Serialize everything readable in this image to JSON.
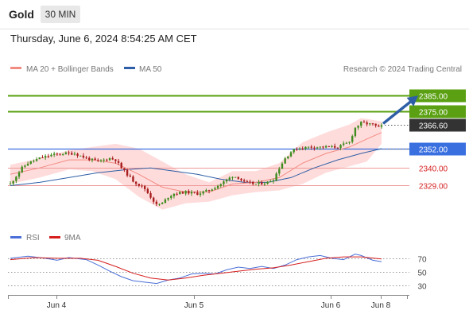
{
  "header": {
    "title": "Gold",
    "timeframe": "30 MIN",
    "datetime": "Thursday, June 6, 2024 8:54:25 AM CET"
  },
  "legend": {
    "ma20": "MA 20 + Bollinger Bands",
    "ma50": "MA 50",
    "rsi": "RSI",
    "rsi9": "9MA",
    "credit": "Research © 2024 Trading Central"
  },
  "colors": {
    "resistance": "#5aa012",
    "pivot": "#3a6fe0",
    "support": "#ee9999",
    "current": "#333333",
    "ma20": "#f28b82",
    "ma50": "#2e5fa6",
    "band": "#ffd6d6",
    "candle_up": "#3e8b1e",
    "candle_down": "#a81e1e",
    "rsi": "#4a6fd8",
    "rsi_ma": "#d61e1e",
    "arrow": "#2e5fa6"
  },
  "chart_data": {
    "type": "candlestick",
    "instrument": "Gold",
    "timeframe": "30 MIN",
    "x_ticks": [
      "Jun 4",
      "Jun 5",
      "Jun 6",
      "Jun 8"
    ],
    "ylim": [
      2305,
      2395
    ],
    "levels": [
      {
        "value": 2385.0,
        "label": "2385.00",
        "kind": "resistance"
      },
      {
        "value": 2375.0,
        "label": "2375.00",
        "kind": "resistance"
      },
      {
        "value": 2366.6,
        "label": "2366.60",
        "kind": "current"
      },
      {
        "value": 2352.0,
        "label": "2352.00",
        "kind": "pivot"
      },
      {
        "value": 2340.0,
        "label": "2340.00",
        "kind": "support"
      },
      {
        "value": 2329.0,
        "label": "2329.00",
        "kind": "support"
      }
    ],
    "price_path": [
      [
        0,
        2330
      ],
      [
        4,
        2340
      ],
      [
        6,
        2343
      ],
      [
        10,
        2346
      ],
      [
        14,
        2348
      ],
      [
        18,
        2349
      ],
      [
        22,
        2349
      ],
      [
        26,
        2346
      ],
      [
        30,
        2344
      ],
      [
        34,
        2346
      ],
      [
        36,
        2345
      ],
      [
        38,
        2340
      ],
      [
        42,
        2332
      ],
      [
        46,
        2327
      ],
      [
        48,
        2322
      ],
      [
        50,
        2317
      ],
      [
        52,
        2318
      ],
      [
        54,
        2322
      ],
      [
        56,
        2324
      ],
      [
        60,
        2325
      ],
      [
        64,
        2324
      ],
      [
        68,
        2326
      ],
      [
        72,
        2330
      ],
      [
        76,
        2335
      ],
      [
        78,
        2334
      ],
      [
        80,
        2331
      ],
      [
        84,
        2330
      ],
      [
        88,
        2331
      ],
      [
        90,
        2333
      ],
      [
        92,
        2340
      ],
      [
        94,
        2346
      ],
      [
        96,
        2350
      ],
      [
        98,
        2352
      ],
      [
        102,
        2353
      ],
      [
        106,
        2353
      ],
      [
        112,
        2353
      ],
      [
        116,
        2356
      ],
      [
        118,
        2365
      ],
      [
        120,
        2368
      ],
      [
        124,
        2367
      ],
      [
        126,
        2365
      ],
      [
        127,
        2366.6
      ]
    ],
    "ma20": [
      [
        0,
        2336
      ],
      [
        10,
        2340
      ],
      [
        20,
        2345
      ],
      [
        28,
        2345
      ],
      [
        36,
        2343
      ],
      [
        44,
        2336
      ],
      [
        52,
        2328
      ],
      [
        60,
        2325
      ],
      [
        68,
        2325
      ],
      [
        76,
        2330
      ],
      [
        84,
        2331
      ],
      [
        92,
        2334
      ],
      [
        100,
        2343
      ],
      [
        108,
        2349
      ],
      [
        116,
        2353
      ],
      [
        122,
        2358
      ],
      [
        127,
        2362
      ]
    ],
    "ma50": [
      [
        0,
        2329
      ],
      [
        10,
        2331
      ],
      [
        20,
        2334
      ],
      [
        30,
        2337
      ],
      [
        40,
        2339
      ],
      [
        48,
        2340
      ],
      [
        56,
        2338
      ],
      [
        64,
        2336
      ],
      [
        72,
        2333
      ],
      [
        80,
        2331
      ],
      [
        88,
        2331
      ],
      [
        96,
        2334
      ],
      [
        104,
        2340
      ],
      [
        112,
        2345
      ],
      [
        120,
        2349
      ],
      [
        127,
        2352
      ]
    ],
    "bb_upper": [
      [
        0,
        2342
      ],
      [
        10,
        2346
      ],
      [
        20,
        2351
      ],
      [
        28,
        2353
      ],
      [
        36,
        2355
      ],
      [
        44,
        2352
      ],
      [
        52,
        2344
      ],
      [
        60,
        2336
      ],
      [
        68,
        2331
      ],
      [
        76,
        2338
      ],
      [
        84,
        2338
      ],
      [
        92,
        2343
      ],
      [
        100,
        2356
      ],
      [
        108,
        2362
      ],
      [
        116,
        2367
      ],
      [
        120,
        2371
      ],
      [
        127,
        2369
      ]
    ],
    "bb_lower": [
      [
        0,
        2330
      ],
      [
        10,
        2334
      ],
      [
        20,
        2339
      ],
      [
        28,
        2338
      ],
      [
        36,
        2333
      ],
      [
        44,
        2322
      ],
      [
        52,
        2314
      ],
      [
        60,
        2318
      ],
      [
        68,
        2319
      ],
      [
        76,
        2323
      ],
      [
        84,
        2325
      ],
      [
        92,
        2326
      ],
      [
        100,
        2330
      ],
      [
        108,
        2337
      ],
      [
        116,
        2341
      ],
      [
        122,
        2344
      ],
      [
        127,
        2355
      ]
    ],
    "projection": {
      "from": [
        127,
        2366.6
      ],
      "to": [
        139,
        2385
      ]
    },
    "rsi": {
      "ylim": [
        15,
        85
      ],
      "ticks": [
        70,
        50,
        30
      ],
      "rsi": [
        [
          0,
          70
        ],
        [
          6,
          73
        ],
        [
          12,
          70
        ],
        [
          16,
          67
        ],
        [
          20,
          71
        ],
        [
          26,
          68
        ],
        [
          30,
          60
        ],
        [
          34,
          51
        ],
        [
          38,
          43
        ],
        [
          42,
          37
        ],
        [
          46,
          35
        ],
        [
          50,
          33
        ],
        [
          54,
          38
        ],
        [
          58,
          41
        ],
        [
          62,
          47
        ],
        [
          66,
          48
        ],
        [
          70,
          47
        ],
        [
          74,
          53
        ],
        [
          78,
          57
        ],
        [
          82,
          55
        ],
        [
          86,
          58
        ],
        [
          90,
          55
        ],
        [
          94,
          60
        ],
        [
          98,
          68
        ],
        [
          102,
          72
        ],
        [
          106,
          74
        ],
        [
          110,
          70
        ],
        [
          114,
          68
        ],
        [
          118,
          76
        ],
        [
          120,
          74
        ],
        [
          124,
          67
        ],
        [
          127,
          65
        ]
      ],
      "rsi9": [
        [
          0,
          68
        ],
        [
          8,
          71
        ],
        [
          16,
          70
        ],
        [
          24,
          70
        ],
        [
          30,
          67
        ],
        [
          36,
          58
        ],
        [
          42,
          48
        ],
        [
          48,
          41
        ],
        [
          54,
          38
        ],
        [
          60,
          41
        ],
        [
          66,
          45
        ],
        [
          72,
          48
        ],
        [
          78,
          51
        ],
        [
          84,
          54
        ],
        [
          90,
          56
        ],
        [
          96,
          60
        ],
        [
          102,
          65
        ],
        [
          108,
          70
        ],
        [
          114,
          72
        ],
        [
          120,
          72
        ],
        [
          127,
          69
        ]
      ]
    }
  }
}
